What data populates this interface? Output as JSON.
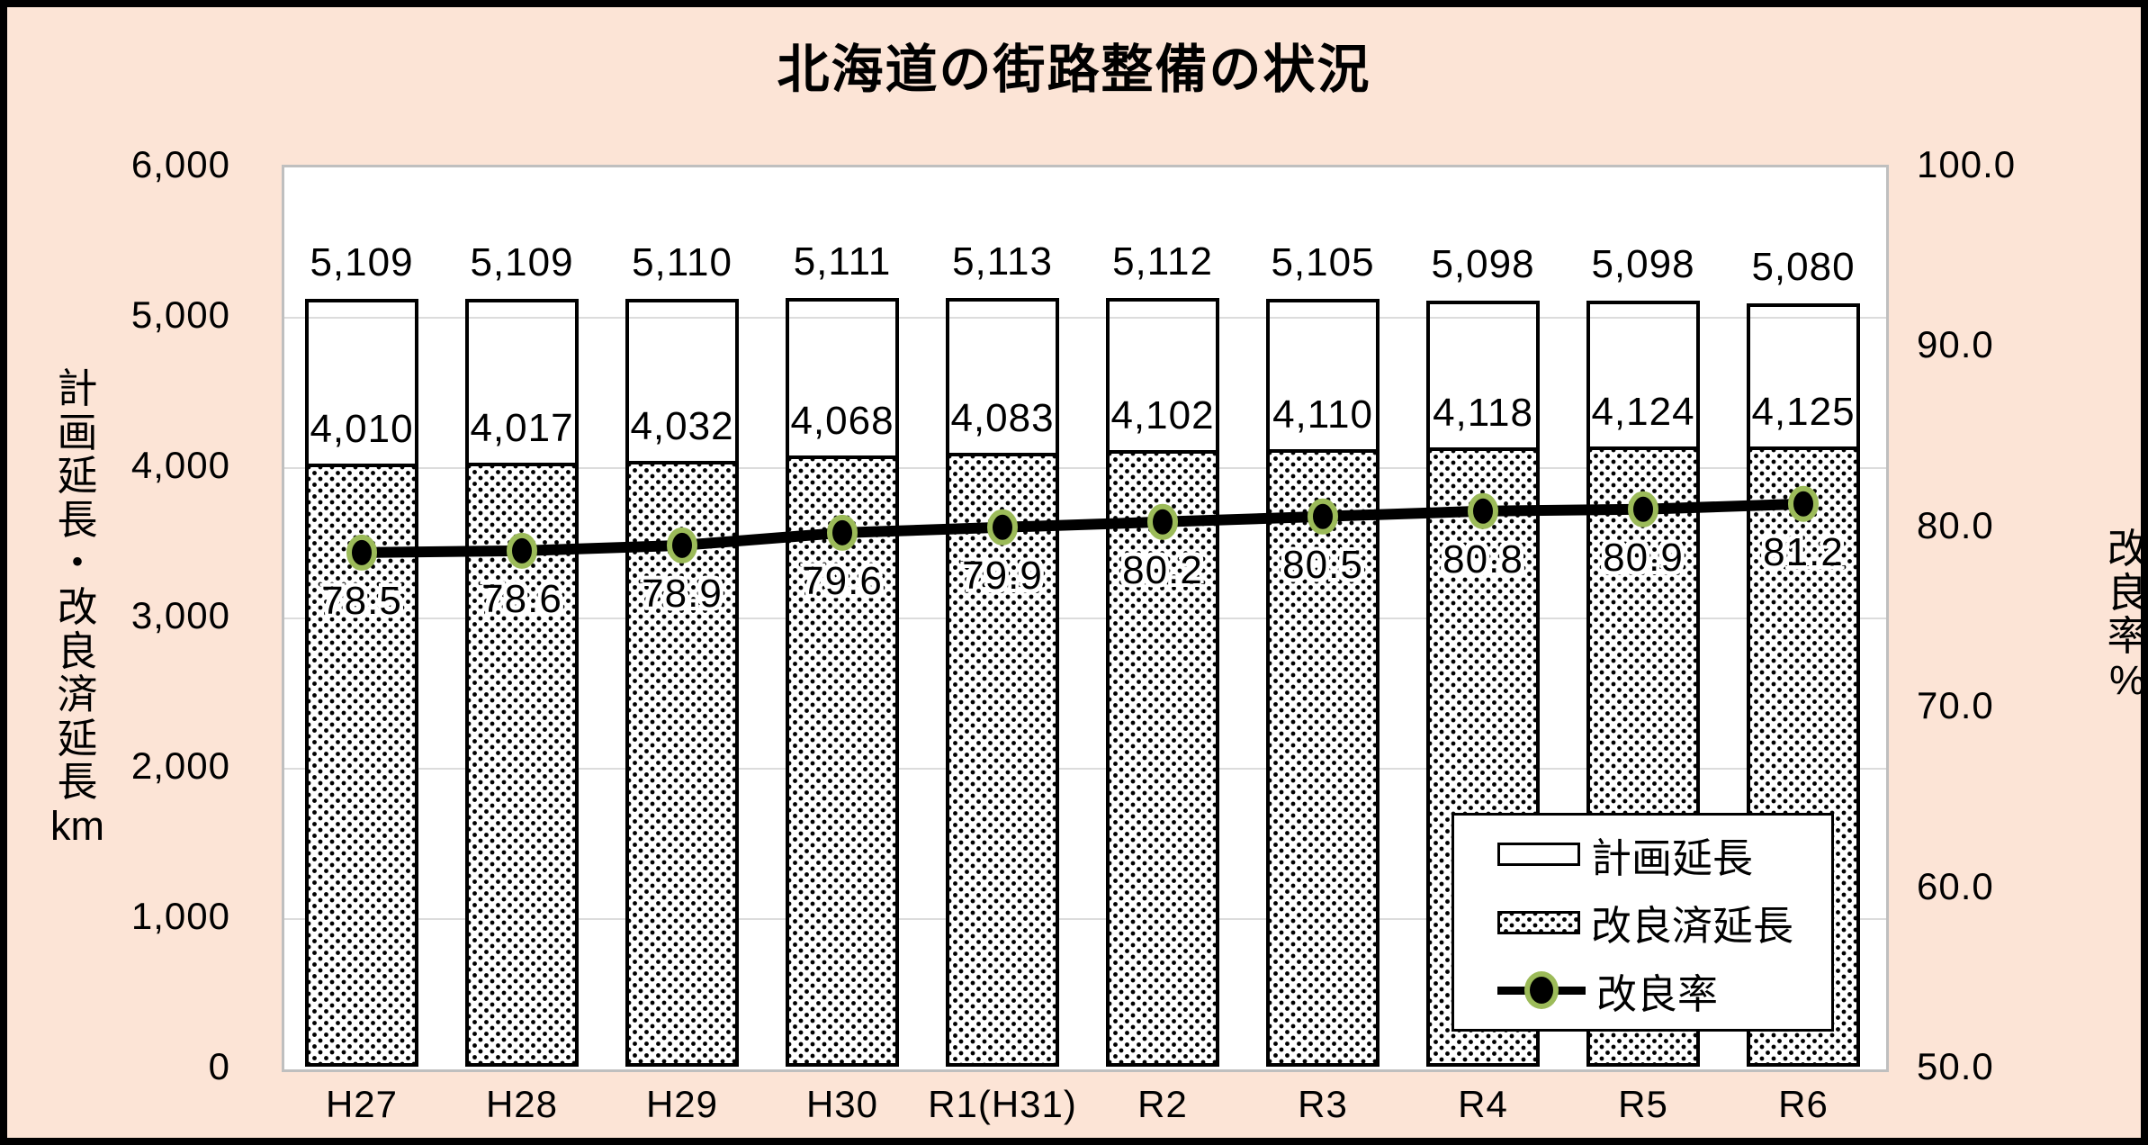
{
  "frame": {
    "background": "#FCE4D6",
    "border_color": "#000000"
  },
  "chart_data": {
    "type": "combo-bar-line",
    "title": "北海道の街路整備の状況",
    "categories": [
      "H27",
      "H28",
      "H29",
      "H30",
      "R1(H31)",
      "R2",
      "R3",
      "R4",
      "R5",
      "R6"
    ],
    "series": [
      {
        "name": "計画延長",
        "type": "bar",
        "style": "white-outline",
        "axis": "left",
        "values": [
          5109,
          5109,
          5110,
          5111,
          5113,
          5112,
          5105,
          5098,
          5098,
          5080
        ],
        "labels": [
          "5,109",
          "5,109",
          "5,110",
          "5,111",
          "5,113",
          "5,112",
          "5,105",
          "5,098",
          "5,098",
          "5,080"
        ]
      },
      {
        "name": "改良済延長",
        "type": "bar",
        "style": "dotted",
        "axis": "left",
        "values": [
          4010,
          4017,
          4032,
          4068,
          4083,
          4102,
          4110,
          4118,
          4124,
          4125
        ],
        "labels": [
          "4,010",
          "4,017",
          "4,032",
          "4,068",
          "4,083",
          "4,102",
          "4,110",
          "4,118",
          "4,124",
          "4,125"
        ]
      },
      {
        "name": "改良率",
        "type": "line",
        "axis": "right",
        "values": [
          78.5,
          78.6,
          78.9,
          79.6,
          79.9,
          80.2,
          80.5,
          80.8,
          80.9,
          81.2
        ],
        "labels": [
          "78.5",
          "78.6",
          "78.9",
          "79.6",
          "79.9",
          "80.2",
          "80.5",
          "80.8",
          "80.9",
          "81.2"
        ]
      }
    ],
    "left_axis": {
      "title_main": "計画延長・改良済延長",
      "title_unit": "km",
      "min": 0,
      "max": 6000,
      "tick_step": 1000,
      "ticks": [
        "6,000",
        "5,000",
        "4,000",
        "3,000",
        "2,000",
        "1,000",
        "0"
      ]
    },
    "right_axis": {
      "title": "改良率%",
      "min": 50.0,
      "max": 100.0,
      "tick_step": 10,
      "ticks": [
        "100.0",
        "90.0",
        "80.0",
        "70.0",
        "60.0",
        "50.0"
      ]
    },
    "legend": {
      "position": "bottom-right",
      "items": [
        "計画延長",
        "改良済延長",
        "改良率"
      ]
    },
    "grid": true,
    "colors": {
      "background": "#FCE4D6",
      "plot_background": "#FFFFFF",
      "plot_border": "#BFBFBF",
      "grid": "#DCDCDC",
      "bar_border": "#000000",
      "line": "#000000",
      "marker_fill": "#000000",
      "marker_ring": "#9CBB59"
    }
  }
}
